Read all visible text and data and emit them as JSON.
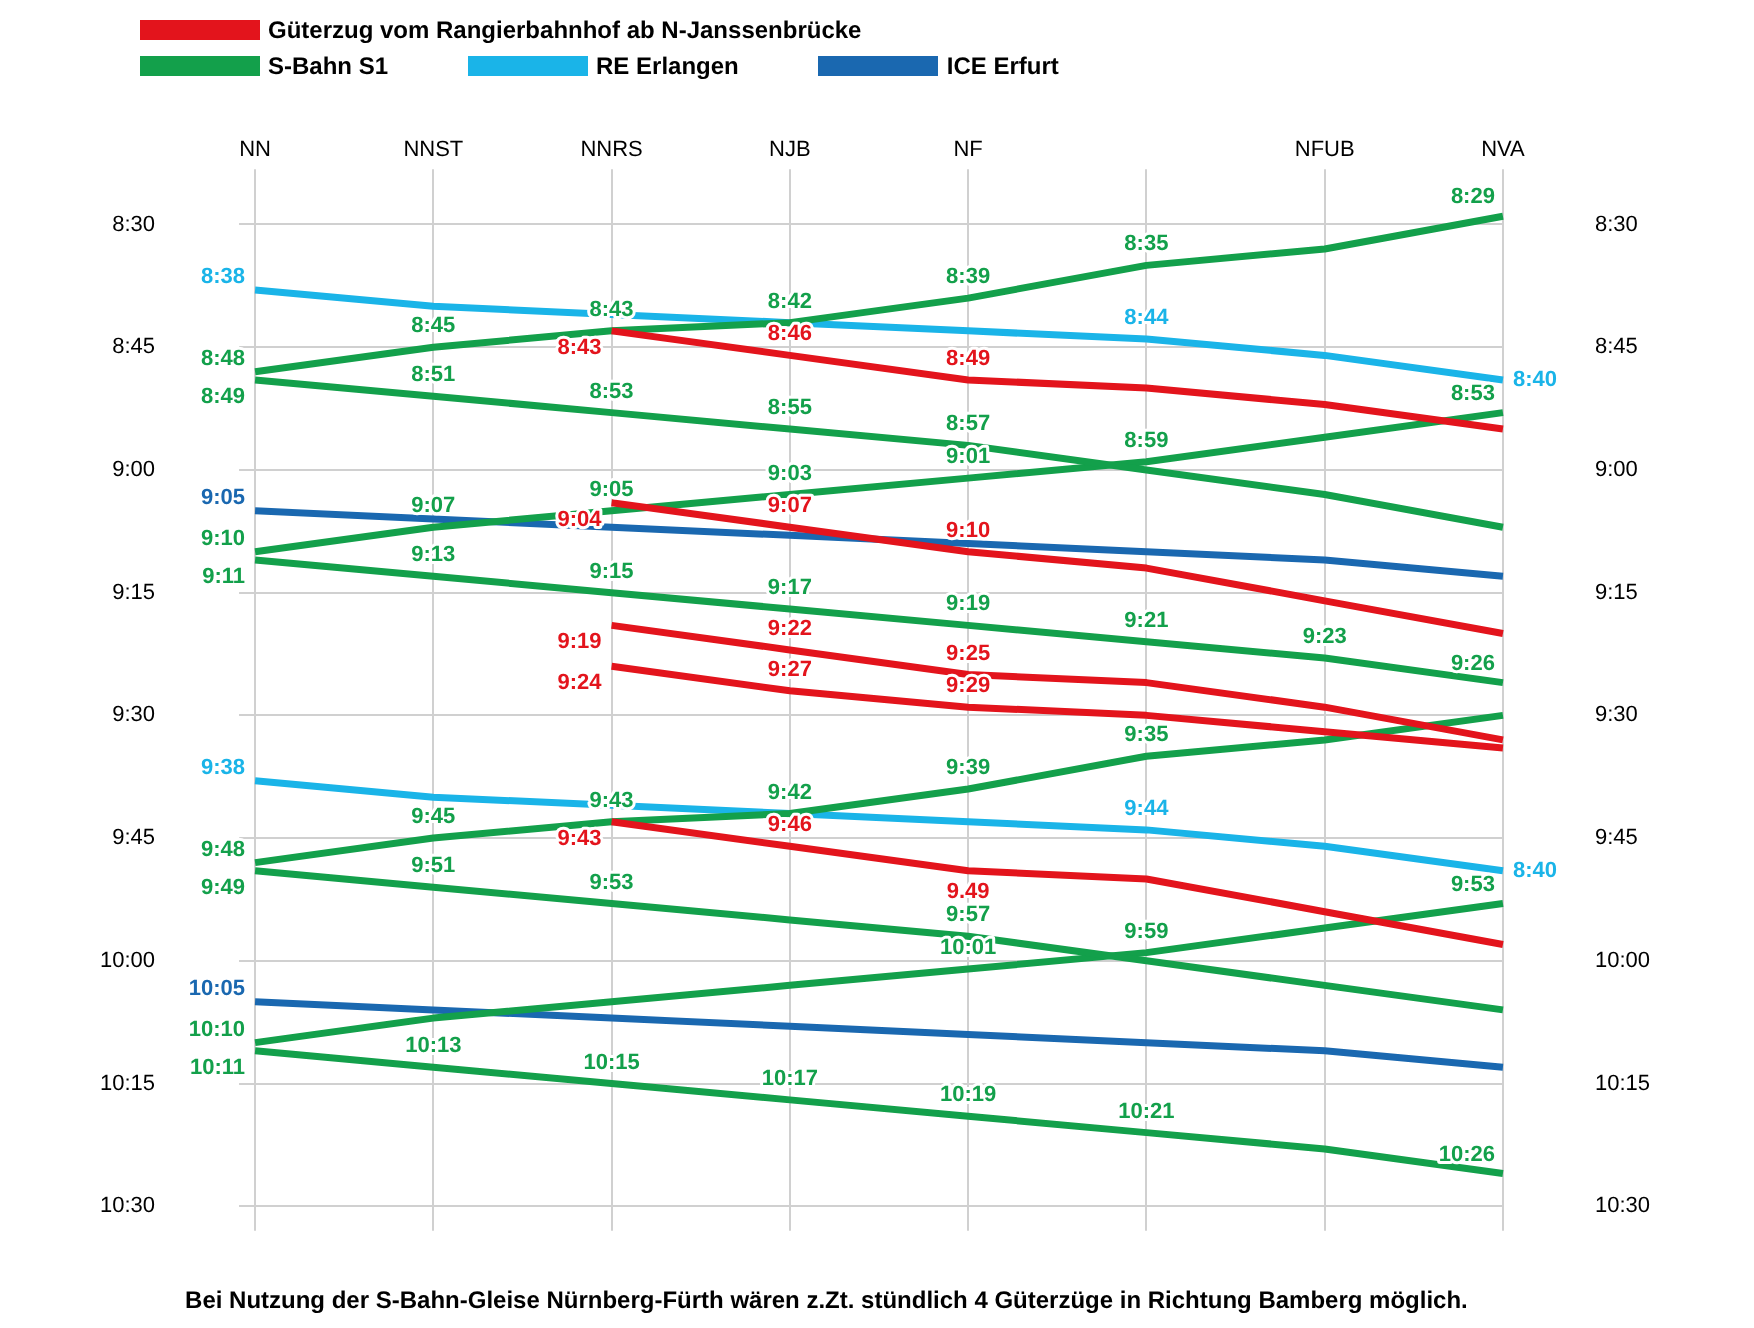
{
  "chart_data": {
    "type": "line",
    "categories": [
      "NN",
      "NNST",
      "NNRS",
      "NJB",
      "NF",
      null,
      "NFUB",
      "NVA"
    ],
    "ylim": [
      10.55,
      8.42
    ],
    "yticks": [
      {
        "value": 8.5,
        "label": "8:30"
      },
      {
        "value": 8.75,
        "label": "8:45"
      },
      {
        "value": 9,
        "label": "9:00"
      },
      {
        "value": 9.25,
        "label": "9:15"
      },
      {
        "value": 9.5,
        "label": "9:30"
      },
      {
        "value": 9.75,
        "label": "9:45"
      },
      {
        "value": 10,
        "label": "10:00"
      },
      {
        "value": 10.25,
        "label": "10:15"
      },
      {
        "value": 10.5,
        "label": "10:30"
      }
    ],
    "y2lim": [
      10.55,
      8.42
    ],
    "y2ticks": [
      {
        "value": 8.5,
        "label": "8:30"
      },
      {
        "value": 8.75,
        "label": "8:45"
      },
      {
        "value": 9,
        "label": "9:00"
      },
      {
        "value": 9.25,
        "label": "9:15"
      },
      {
        "value": 9.5,
        "label": "9:30"
      },
      {
        "value": 9.75,
        "label": "9:45"
      },
      {
        "value": 10,
        "label": "10:00"
      },
      {
        "value": 10.25,
        "label": "10:15"
      },
      {
        "value": 10.5,
        "label": "10:30"
      }
    ],
    "grid": true,
    "legend": "top",
    "marker": "none",
    "series": [
      {
        "name": "Güterzug vom Rangierbahnhof ab N-Janssenbrücke",
        "color": "#e3141c",
        "values": [
          null,
          null,
          8.7167,
          8.7667,
          8.8167,
          8.8333,
          8.8667,
          8.9167
        ],
        "value_labels": [
          null,
          null,
          "8:43",
          "8:46",
          "8:49",
          null,
          null,
          null
        ]
      },
      {
        "color": "#e3141c",
        "values": [
          null,
          null,
          9.0667,
          9.1167,
          9.1667,
          9.2,
          9.2667,
          9.3333
        ],
        "value_labels": [
          null,
          null,
          "9:04",
          "9:07",
          "9:10",
          null,
          null,
          null
        ]
      },
      {
        "color": "#e3141c",
        "values": [
          null,
          null,
          9.3167,
          9.3667,
          9.4167,
          9.4333,
          9.4833,
          9.55
        ],
        "value_labels": [
          null,
          null,
          "9:19",
          "9:22",
          "9:25",
          null,
          null,
          null
        ]
      },
      {
        "color": "#e3141c",
        "values": [
          null,
          null,
          9.4,
          9.45,
          9.4833,
          9.5,
          9.5333,
          9.5667
        ],
        "value_labels": [
          null,
          null,
          "9:24",
          "9:27",
          "9:29",
          null,
          null,
          null
        ]
      },
      {
        "color": "#e3141c",
        "values": [
          null,
          null,
          9.7167,
          9.7667,
          9.8167,
          9.8333,
          9.9,
          9.9667
        ],
        "value_labels": [
          null,
          null,
          "9:43",
          "9:46",
          null,
          null,
          null,
          null
        ]
      },
      {
        "name": "S-Bahn S1",
        "color": "#13a04b",
        "values": [
          8.8,
          8.75,
          8.7167,
          8.7,
          8.65,
          8.5833,
          8.55,
          8.4833
        ],
        "value_labels": [
          "8:48",
          "8:45",
          "8:43",
          "8:42",
          "8:39",
          "8:35",
          null,
          "8:29"
        ]
      },
      {
        "color": "#13a04b",
        "values": [
          8.8167,
          8.85,
          8.8833,
          8.9167,
          8.95,
          9.0,
          9.05,
          9.1167
        ],
        "value_labels": [
          "8:49",
          "8:51",
          "8:53",
          "8:55",
          "8:57",
          null,
          null,
          null
        ]
      },
      {
        "color": "#13a04b",
        "values": [
          9.1667,
          9.1167,
          9.0833,
          9.05,
          9.0167,
          8.9833,
          8.9333,
          8.8833
        ],
        "value_labels": [
          "9:10",
          "9:07",
          "9:05",
          "9:03",
          "9:01",
          "8:59",
          null,
          "8:53"
        ]
      },
      {
        "color": "#13a04b",
        "values": [
          9.1833,
          9.2167,
          9.25,
          9.2833,
          9.3167,
          9.35,
          9.3833,
          9.4333
        ],
        "value_labels": [
          "9:11",
          "9:13",
          "9:15",
          "9:17",
          "9:19",
          "9:21",
          "9:23",
          "9:26"
        ]
      },
      {
        "color": "#13a04b",
        "values": [
          9.8,
          9.75,
          9.7167,
          9.7,
          9.65,
          9.5833,
          9.55,
          9.5
        ],
        "value_labels": [
          "9:48",
          "9:45",
          "9:43",
          "9:42",
          "9:39",
          "9:35",
          null,
          null
        ]
      },
      {
        "color": "#13a04b",
        "values": [
          9.8167,
          9.85,
          9.8833,
          9.9167,
          9.95,
          10.0,
          10.05,
          10.1
        ],
        "value_labels": [
          "9:49",
          "9:51",
          "9:53",
          null,
          "9:57",
          null,
          null,
          null
        ]
      },
      {
        "color": "#13a04b",
        "values": [
          10.1667,
          10.1167,
          10.0833,
          10.05,
          10.0167,
          9.9833,
          9.9333,
          9.8833
        ],
        "value_labels": [
          "10:10",
          null,
          null,
          null,
          "10:01",
          "9:59",
          null,
          "9:53"
        ]
      },
      {
        "color": "#13a04b",
        "values": [
          10.1833,
          10.2167,
          10.25,
          10.2833,
          10.3167,
          10.35,
          10.3833,
          10.4333
        ],
        "value_labels": [
          "10:11",
          "10:13",
          "10:15",
          "10:17",
          "10:19",
          "10:21",
          null,
          "10:26"
        ]
      },
      {
        "name": "RE Erlangen",
        "color": "#1ab4e8",
        "values": [
          8.6333,
          8.6667,
          8.6833,
          8.7,
          8.7167,
          8.7333,
          8.7667,
          8.8167
        ],
        "value_labels": [
          "8:38",
          null,
          null,
          null,
          null,
          "8:44",
          null,
          null
        ]
      },
      {
        "color": "#1ab4e8",
        "values": [
          9.6333,
          9.6667,
          9.6833,
          9.7,
          9.7167,
          9.7333,
          9.7667,
          9.8167
        ],
        "value_labels": [
          "9:38",
          null,
          null,
          null,
          null,
          "9:44",
          null,
          null
        ]
      },
      {
        "name": "ICE Erfurt",
        "color": "#1a68b0",
        "values": [
          9.0833,
          9.1,
          9.1167,
          9.1333,
          9.15,
          9.1667,
          9.1833,
          9.2167
        ],
        "value_labels": [
          "9:05",
          null,
          null,
          null,
          null,
          null,
          null,
          null
        ]
      },
      {
        "color": "#1a68b0",
        "values": [
          10.0833,
          10.1,
          10.1167,
          10.1333,
          10.15,
          10.1667,
          10.1833,
          10.2167
        ],
        "value_labels": [
          "10:05",
          null,
          null,
          null,
          null,
          null,
          null,
          null
        ]
      }
    ],
    "annotations": [
      {
        "text": "8:40",
        "x": "NVA",
        "y": 8.8167
      },
      {
        "text": "8:40",
        "x": "NVA",
        "y": 9.8167
      },
      {
        "text": "9.49",
        "x": "NF",
        "y": 9.8167
      },
      "Bei Nutzung der S-Bahn-Gleise Nürnberg-Fürth wären z.Zt. stündlich 4 Güterzüge in Richtung Bamberg möglich."
    ]
  }
}
